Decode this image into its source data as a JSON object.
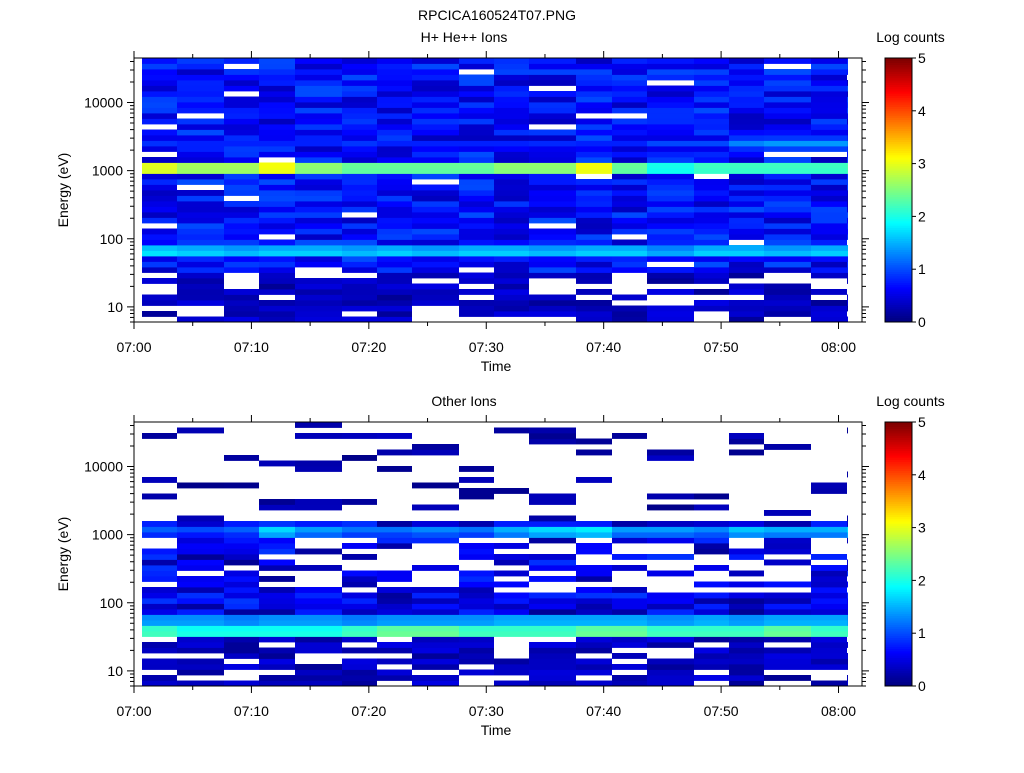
{
  "page": {
    "file_title": "RPCICA160524T07.PNG"
  },
  "palette": {
    "white": "#ffffff",
    "jet": [
      "#00007f",
      "#0000ff",
      "#007fff",
      "#00ffff",
      "#7fff7f",
      "#ffff00",
      "#ff7f00",
      "#ff0000",
      "#7f0000"
    ]
  },
  "chart_data": [
    {
      "type": "heatmap",
      "title": "H+ He++ Ions",
      "xlabel": "Time",
      "ylabel": "Energy (eV)",
      "x_ticks": [
        "07:00",
        "07:10",
        "07:20",
        "07:30",
        "07:40",
        "07:50",
        "08:00"
      ],
      "y_ticks": [
        "10",
        "100",
        "1000",
        "10000"
      ],
      "y_scale": "log",
      "ylim": [
        6,
        45000
      ],
      "time_range": [
        "07:00",
        "08:02"
      ],
      "colorbar": {
        "label": "Log counts",
        "ticks": [
          "0",
          "1",
          "2",
          "3",
          "4",
          "5"
        ],
        "range": [
          0,
          5
        ]
      },
      "columns": [
        "07:00",
        "07:03",
        "07:07",
        "07:10",
        "07:13",
        "07:17",
        "07:20",
        "07:23",
        "07:27",
        "07:30",
        "07:33",
        "07:37",
        "07:40",
        "07:43",
        "07:47",
        "07:50",
        "07:53",
        "07:57",
        "08:00"
      ],
      "bands_approx": [
        {
          "energy_eV": 1100,
          "log_counts": [
            3.2,
            2.9,
            2.9,
            3.3,
            2.8,
            2.6,
            2.6,
            2.6,
            2.6,
            2.8,
            2.8,
            3.3,
            2.6,
            2.2,
            2.4,
            2.4,
            2.4,
            2.4,
            2.5
          ]
        },
        {
          "energy_eV": 65,
          "log_counts": [
            1.9,
            1.8,
            1.7,
            1.8,
            1.8,
            1.7,
            1.8,
            1.7,
            1.8,
            1.8,
            1.7,
            1.8,
            1.8,
            1.6,
            1.8,
            1.8,
            1.7,
            1.8,
            1.8
          ]
        },
        {
          "energy_eV": 2500,
          "log_counts": [
            0.8,
            0.8,
            0.8,
            0.8,
            0.8,
            0.8,
            0.8,
            0.8,
            0.8,
            0.8,
            0.8,
            0.8,
            0.8,
            1.0,
            1.0,
            1.3,
            1.4,
            1.4,
            1.3
          ]
        }
      ],
      "background_log_counts_approx": [
        0.3,
        1.0
      ]
    },
    {
      "type": "heatmap",
      "title": "Other Ions",
      "xlabel": "Time",
      "ylabel": "Energy (eV)",
      "x_ticks": [
        "07:00",
        "07:10",
        "07:20",
        "07:30",
        "07:40",
        "07:50",
        "08:00"
      ],
      "y_ticks": [
        "10",
        "100",
        "1000",
        "10000"
      ],
      "y_scale": "log",
      "ylim": [
        6,
        45000
      ],
      "time_range": [
        "07:00",
        "08:02"
      ],
      "colorbar": {
        "label": "Log counts",
        "ticks": [
          "0",
          "1",
          "2",
          "3",
          "4",
          "5"
        ],
        "range": [
          0,
          5
        ]
      },
      "columns": [
        "07:00",
        "07:03",
        "07:07",
        "07:10",
        "07:13",
        "07:17",
        "07:20",
        "07:23",
        "07:27",
        "07:30",
        "07:33",
        "07:37",
        "07:40",
        "07:43",
        "07:47",
        "07:50",
        "07:53",
        "07:57",
        "08:00"
      ],
      "bands_approx": [
        {
          "energy_eV": 38,
          "log_counts": [
            2.4,
            2.2,
            2.2,
            2.2,
            2.2,
            2.4,
            2.6,
            2.6,
            2.4,
            2.4,
            2.4,
            2.6,
            2.6,
            2.4,
            2.4,
            2.4,
            2.6,
            2.4,
            2.4
          ]
        },
        {
          "energy_eV": 55,
          "log_counts": [
            1.6,
            1.6,
            1.5,
            1.6,
            1.6,
            1.5,
            1.6,
            1.6,
            1.6,
            1.7,
            1.7,
            1.7,
            1.7,
            1.6,
            1.7,
            1.6,
            1.7,
            1.7,
            1.6
          ]
        },
        {
          "energy_eV": 1150,
          "log_counts": [
            1.2,
            1.1,
            1.2,
            1.8,
            1.5,
            1.3,
            1.3,
            1.4,
            1.3,
            1.6,
            1.8,
            1.9,
            1.5,
            1.5,
            1.4,
            1.7,
            1.6,
            1.6,
            1.8
          ]
        }
      ],
      "background_log_counts_approx": [
        0.1,
        0.9
      ]
    }
  ]
}
